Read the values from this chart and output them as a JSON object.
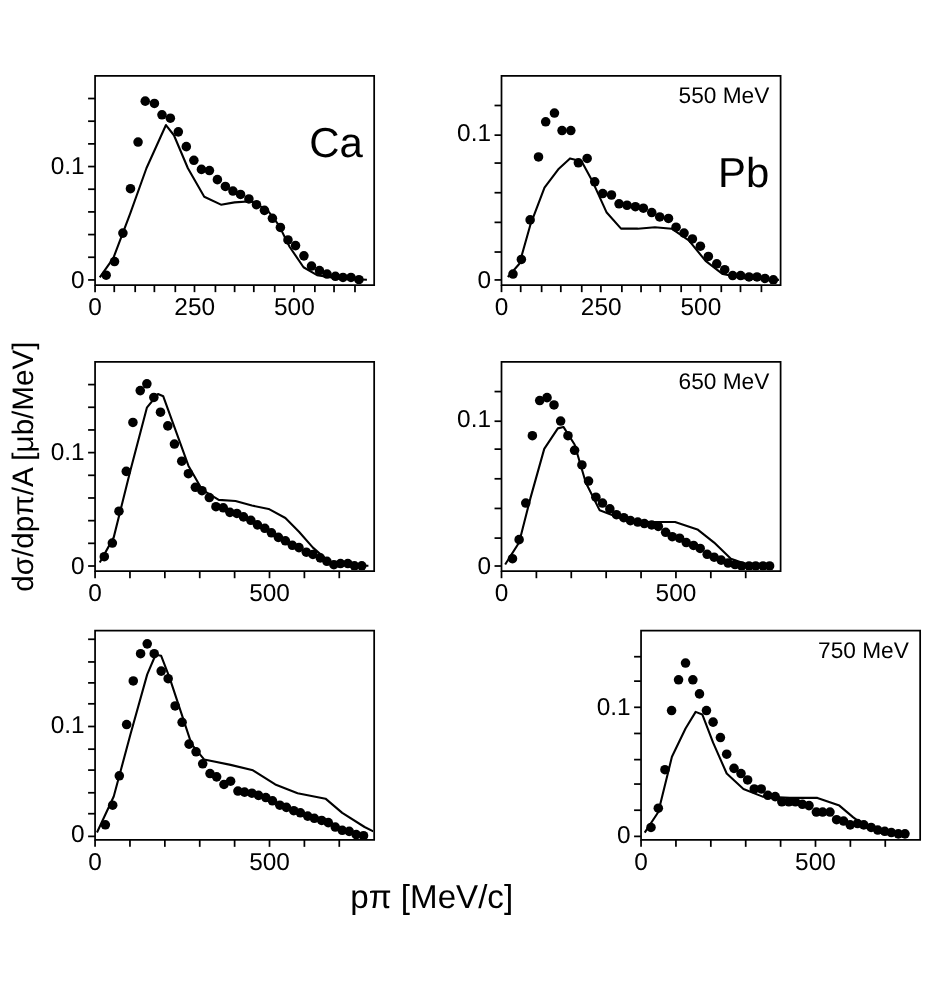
{
  "chart_data": [
    {
      "type": "scatter",
      "annotations": [
        "Ca"
      ],
      "xlim": [
        0,
        700
      ],
      "ylim": [
        -0.004,
        0.18
      ],
      "grid": false,
      "xticks": [
        0,
        {
          "value": 50,
          "label": null
        },
        {
          "value": 100,
          "label": null
        },
        {
          "value": 150,
          "label": null
        },
        {
          "value": 200,
          "label": null
        },
        250,
        {
          "value": 300,
          "label": null
        },
        {
          "value": 350,
          "label": null
        },
        {
          "value": 400,
          "label": null
        },
        {
          "value": 450,
          "label": null
        },
        500,
        {
          "value": 550,
          "label": null
        },
        {
          "value": 600,
          "label": null
        },
        {
          "value": 650,
          "label": null
        }
      ],
      "yticks": [
        0,
        {
          "value": 0.02,
          "label": null
        },
        {
          "value": 0.04,
          "label": null
        },
        {
          "value": 0.06,
          "label": null
        },
        {
          "value": 0.08,
          "label": null
        },
        0.1,
        {
          "value": 0.12,
          "label": null
        },
        {
          "value": 0.14,
          "label": null
        },
        {
          "value": 0.16,
          "label": null
        }
      ],
      "series": [
        {
          "marker": "circle",
          "color": "#000000",
          "x": [
            30,
            51,
            72,
            91,
            110,
            128,
            151,
            170,
            191,
            211,
            231,
            250,
            269,
            289,
            309,
            329,
            348,
            367,
            388,
            407,
            427,
            447,
            467,
            486,
            505,
            526,
            545,
            565,
            584,
            605,
            624,
            644,
            664
          ],
          "values": [
            0.004,
            0.016,
            0.041,
            0.08,
            0.121,
            0.157,
            0.155,
            0.145,
            0.142,
            0.13,
            0.117,
            0.105,
            0.097,
            0.096,
            0.088,
            0.082,
            0.078,
            0.075,
            0.071,
            0.066,
            0.061,
            0.054,
            0.046,
            0.035,
            0.03,
            0.021,
            0.012,
            0.008,
            0.005,
            0.003,
            0.002,
            0.002,
            0.0
          ]
        },
        {
          "type": "line",
          "color": "#000000",
          "x": [
            14,
            48,
            90,
            131,
            180,
            200,
            235,
            276,
            318,
            352,
            394,
            435,
            463,
            490,
            525,
            559,
            615,
            684
          ],
          "values": [
            0.002,
            0.019,
            0.058,
            0.098,
            0.136,
            0.127,
            0.098,
            0.073,
            0.066,
            0.068,
            0.069,
            0.061,
            0.048,
            0.029,
            0.011,
            0.004,
            0.001,
            0.0
          ]
        }
      ]
    },
    {
      "type": "scatter",
      "annotations": [
        "550 MeV",
        "Pb"
      ],
      "xlim": [
        0,
        700
      ],
      "ylim": [
        -0.003,
        0.14
      ],
      "grid": false,
      "xticks": [
        0,
        {
          "value": 50,
          "label": null
        },
        {
          "value": 100,
          "label": null
        },
        {
          "value": 150,
          "label": null
        },
        {
          "value": 200,
          "label": null
        },
        250,
        {
          "value": 300,
          "label": null
        },
        {
          "value": 350,
          "label": null
        },
        {
          "value": 400,
          "label": null
        },
        {
          "value": 450,
          "label": null
        },
        500,
        {
          "value": 550,
          "label": null
        },
        {
          "value": 600,
          "label": null
        },
        {
          "value": 650,
          "label": null
        }
      ],
      "yticks": [
        0,
        {
          "value": 0.02,
          "label": null
        },
        {
          "value": 0.04,
          "label": null
        },
        {
          "value": 0.06,
          "label": null
        },
        {
          "value": 0.08,
          "label": null
        },
        0.1,
        {
          "value": 0.12,
          "label": null
        }
      ],
      "series": [
        {
          "marker": "circle",
          "color": "#000000",
          "x": [
            31,
            52,
            74,
            95,
            113,
            135,
            154,
            176,
            195,
            217,
            236,
            256,
            278,
            297,
            317,
            338,
            358,
            379,
            399,
            421,
            440,
            460,
            481,
            501,
            521,
            542,
            562,
            582,
            602,
            623,
            643,
            663,
            684
          ],
          "values": [
            0.004,
            0.014,
            0.041,
            0.084,
            0.108,
            0.114,
            0.102,
            0.102,
            0.08,
            0.083,
            0.067,
            0.059,
            0.058,
            0.052,
            0.051,
            0.05,
            0.049,
            0.046,
            0.043,
            0.042,
            0.036,
            0.032,
            0.028,
            0.023,
            0.016,
            0.011,
            0.007,
            0.003,
            0.003,
            0.002,
            0.002,
            0.001,
            0.0
          ]
        },
        {
          "type": "line",
          "color": "#000000",
          "x": [
            18,
            47,
            75,
            110,
            146,
            174,
            203,
            231,
            266,
            302,
            344,
            387,
            429,
            472,
            514,
            557,
            613,
            698
          ],
          "values": [
            0.002,
            0.011,
            0.038,
            0.063,
            0.076,
            0.083,
            0.081,
            0.067,
            0.046,
            0.035,
            0.035,
            0.036,
            0.035,
            0.027,
            0.013,
            0.004,
            0.001,
            0.0
          ]
        }
      ]
    },
    {
      "type": "scatter",
      "ylabel": "dσ/dpπ/A [μb/MeV]",
      "xlim": [
        0,
        800
      ],
      "ylim": [
        -0.004,
        0.18
      ],
      "grid": false,
      "xticks": [
        0,
        {
          "value": 100,
          "label": null
        },
        {
          "value": 200,
          "label": null
        },
        {
          "value": 300,
          "label": null
        },
        {
          "value": 400,
          "label": null
        },
        500,
        {
          "value": 600,
          "label": null
        },
        {
          "value": 700,
          "label": null
        }
      ],
      "yticks": [
        0,
        {
          "value": 0.02,
          "label": null
        },
        {
          "value": 0.04,
          "label": null
        },
        {
          "value": 0.06,
          "label": null
        },
        {
          "value": 0.08,
          "label": null
        },
        0.1,
        {
          "value": 0.12,
          "label": null
        },
        {
          "value": 0.14,
          "label": null
        },
        {
          "value": 0.16,
          "label": null
        }
      ],
      "series": [
        {
          "marker": "circle",
          "color": "#000000",
          "x": [
            29,
            52,
            71,
            92,
            111,
            132,
            151,
            171,
            190,
            211,
            230,
            251,
            270,
            290,
            309,
            330,
            349,
            370,
            389,
            409,
            428,
            449,
            468,
            489,
            508,
            528,
            548,
            568,
            587,
            608,
            627,
            648,
            667,
            687,
            706,
            727,
            746,
            767
          ],
          "values": [
            0.008,
            0.02,
            0.048,
            0.083,
            0.126,
            0.154,
            0.16,
            0.148,
            0.135,
            0.123,
            0.107,
            0.092,
            0.081,
            0.069,
            0.066,
            0.06,
            0.052,
            0.051,
            0.047,
            0.046,
            0.043,
            0.04,
            0.036,
            0.033,
            0.029,
            0.025,
            0.022,
            0.018,
            0.016,
            0.012,
            0.01,
            0.007,
            0.004,
            0.001,
            0.002,
            0.002,
            0.0,
            0.0
          ]
        },
        {
          "type": "line",
          "color": "#000000",
          "x": [
            16,
            56,
            103,
            151,
            183,
            198,
            230,
            270,
            309,
            357,
            405,
            452,
            500,
            548,
            587,
            627,
            675,
            738,
            786
          ],
          "values": [
            0.003,
            0.025,
            0.083,
            0.139,
            0.151,
            0.149,
            0.122,
            0.088,
            0.067,
            0.058,
            0.057,
            0.053,
            0.05,
            0.042,
            0.03,
            0.016,
            0.003,
            0.0,
            0.0
          ]
        }
      ]
    },
    {
      "type": "scatter",
      "annotations": [
        "650 MeV"
      ],
      "xlim": [
        0,
        800
      ],
      "ylim": [
        -0.003,
        0.14
      ],
      "grid": false,
      "xticks": [
        0,
        {
          "value": 100,
          "label": null
        },
        {
          "value": 200,
          "label": null
        },
        {
          "value": 300,
          "label": null
        },
        {
          "value": 400,
          "label": null
        },
        500,
        {
          "value": 600,
          "label": null
        },
        {
          "value": 700,
          "label": null
        }
      ],
      "yticks": [
        0,
        {
          "value": 0.02,
          "label": null
        },
        {
          "value": 0.04,
          "label": null
        },
        {
          "value": 0.06,
          "label": null
        },
        {
          "value": 0.08,
          "label": null
        },
        0.1,
        {
          "value": 0.12,
          "label": null
        }
      ],
      "series": [
        {
          "marker": "circle",
          "color": "#000000",
          "x": [
            34,
            53,
            72,
            91,
            112,
            133,
            153,
            172,
            193,
            212,
            233,
            252,
            273,
            292,
            313,
            332,
            353,
            372,
            393,
            412,
            433,
            452,
            473,
            492,
            513,
            532,
            553,
            572,
            592,
            612,
            632,
            652,
            672,
            691,
            712,
            731,
            752,
            771
          ],
          "values": [
            0.005,
            0.018,
            0.043,
            0.089,
            0.113,
            0.115,
            0.11,
            0.099,
            0.089,
            0.079,
            0.069,
            0.058,
            0.047,
            0.043,
            0.039,
            0.035,
            0.033,
            0.031,
            0.03,
            0.029,
            0.028,
            0.027,
            0.023,
            0.02,
            0.019,
            0.016,
            0.014,
            0.012,
            0.008,
            0.006,
            0.004,
            0.002,
            0.001,
            0.0,
            0.0,
            0.0,
            0.0,
            0.0
          ]
        },
        {
          "type": "line",
          "color": "#000000",
          "x": [
            13,
            53,
            85,
            125,
            164,
            180,
            212,
            244,
            284,
            340,
            420,
            500,
            564,
            612,
            660,
            707,
            771
          ],
          "values": [
            0.001,
            0.016,
            0.046,
            0.08,
            0.094,
            0.095,
            0.083,
            0.057,
            0.038,
            0.033,
            0.03,
            0.03,
            0.025,
            0.016,
            0.005,
            0.001,
            0.0
          ]
        }
      ]
    },
    {
      "type": "scatter",
      "xlabel": "pπ [MeV/c]",
      "xlim": [
        0,
        800
      ],
      "ylim": [
        -0.004,
        0.188
      ],
      "grid": false,
      "xticks": [
        0,
        {
          "value": 100,
          "label": null
        },
        {
          "value": 200,
          "label": null
        },
        {
          "value": 300,
          "label": null
        },
        {
          "value": 400,
          "label": null
        },
        500,
        {
          "value": 600,
          "label": null
        },
        {
          "value": 700,
          "label": null
        }
      ],
      "yticks": [
        0,
        {
          "value": 0.02,
          "label": null
        },
        {
          "value": 0.04,
          "label": null
        },
        {
          "value": 0.06,
          "label": null
        },
        {
          "value": 0.08,
          "label": null
        },
        0.1,
        {
          "value": 0.12,
          "label": null
        },
        {
          "value": 0.14,
          "label": null
        },
        {
          "value": 0.16,
          "label": null
        },
        {
          "value": 0.18,
          "label": null
        }
      ],
      "series": [
        {
          "marker": "circle",
          "color": "#000000",
          "x": [
            32,
            53,
            72,
            93,
            112,
            133,
            152,
            172,
            192,
            212,
            232,
            252,
            272,
            292,
            311,
            332,
            351,
            372,
            391,
            412,
            431,
            452,
            471,
            492,
            511,
            532,
            551,
            572,
            591,
            612,
            631,
            652,
            671,
            691,
            711,
            731,
            751,
            772
          ],
          "values": [
            0.009,
            0.027,
            0.054,
            0.101,
            0.141,
            0.166,
            0.175,
            0.166,
            0.15,
            0.143,
            0.118,
            0.103,
            0.083,
            0.076,
            0.065,
            0.056,
            0.053,
            0.046,
            0.049,
            0.04,
            0.039,
            0.038,
            0.036,
            0.034,
            0.031,
            0.027,
            0.025,
            0.022,
            0.02,
            0.017,
            0.015,
            0.013,
            0.011,
            0.007,
            0.004,
            0.003,
            0.0,
            -0.001
          ]
        },
        {
          "type": "line",
          "color": "#000000",
          "x": [
            8,
            56,
            104,
            152,
            176,
            192,
            216,
            248,
            279,
            315,
            391,
            455,
            519,
            583,
            663,
            711,
            775,
            800
          ],
          "values": [
            0.002,
            0.035,
            0.092,
            0.147,
            0.165,
            0.164,
            0.144,
            0.113,
            0.083,
            0.069,
            0.064,
            0.059,
            0.046,
            0.038,
            0.033,
            0.02,
            0.007,
            0.003
          ]
        }
      ]
    },
    {
      "type": "scatter",
      "annotations": [
        "750 MeV"
      ],
      "xlim": [
        0,
        800
      ],
      "ylim": [
        -0.003,
        0.16
      ],
      "grid": false,
      "xticks": [
        0,
        {
          "value": 100,
          "label": null
        },
        {
          "value": 200,
          "label": null
        },
        {
          "value": 300,
          "label": null
        },
        {
          "value": 400,
          "label": null
        },
        500,
        {
          "value": 600,
          "label": null
        },
        {
          "value": 700,
          "label": null
        }
      ],
      "yticks": [
        0,
        {
          "value": 0.02,
          "label": null
        },
        {
          "value": 0.04,
          "label": null
        },
        {
          "value": 0.06,
          "label": null
        },
        {
          "value": 0.08,
          "label": null
        },
        0.1,
        {
          "value": 0.12,
          "label": null
        },
        {
          "value": 0.14,
          "label": null
        }
      ],
      "series": [
        {
          "marker": "circle",
          "color": "#000000",
          "x": [
            31,
            52,
            71,
            90,
            110,
            130,
            151,
            170,
            190,
            209,
            230,
            248,
            269,
            289,
            308,
            327,
            347,
            366,
            387,
            406,
            426,
            445,
            465,
            484,
            505,
            523,
            544,
            563,
            583,
            602,
            623,
            641,
            662,
            681,
            701,
            720,
            740,
            759
          ],
          "values": [
            0.006,
            0.021,
            0.051,
            0.097,
            0.121,
            0.134,
            0.121,
            0.11,
            0.097,
            0.088,
            0.076,
            0.063,
            0.052,
            0.048,
            0.043,
            0.036,
            0.036,
            0.031,
            0.03,
            0.026,
            0.026,
            0.026,
            0.024,
            0.023,
            0.018,
            0.018,
            0.018,
            0.012,
            0.011,
            0.008,
            0.009,
            0.008,
            0.006,
            0.004,
            0.003,
            0.002,
            0.001,
            0.001
          ]
        },
        {
          "type": "line",
          "color": "#000000",
          "x": [
            13,
            52,
            91,
            130,
            159,
            178,
            209,
            248,
            296,
            351,
            429,
            508,
            571,
            610,
            649,
            697,
            767
          ],
          "values": [
            0.002,
            0.018,
            0.061,
            0.083,
            0.096,
            0.094,
            0.072,
            0.048,
            0.036,
            0.03,
            0.029,
            0.029,
            0.023,
            0.014,
            0.006,
            0.001,
            0.0
          ]
        }
      ]
    }
  ]
}
